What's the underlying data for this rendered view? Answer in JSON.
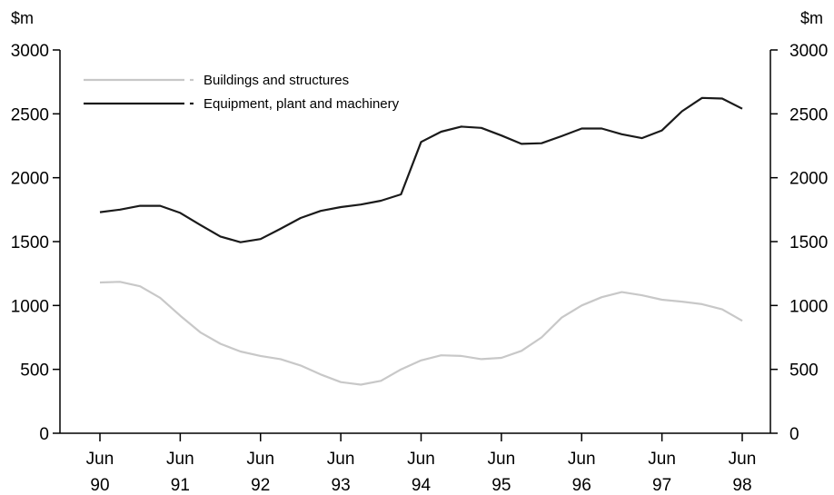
{
  "chart_data": {
    "type": "line",
    "left_unit": "$m",
    "right_unit": "$m",
    "ylim": [
      0,
      3000
    ],
    "yticks": [
      "0",
      "500",
      "1000",
      "1500",
      "2000",
      "2500",
      "3000"
    ],
    "x_tick_labels": [
      {
        "month": "Jun",
        "year": "90"
      },
      {
        "month": "Jun",
        "year": "91"
      },
      {
        "month": "Jun",
        "year": "92"
      },
      {
        "month": "Jun",
        "year": "93"
      },
      {
        "month": "Jun",
        "year": "94"
      },
      {
        "month": "Jun",
        "year": "95"
      },
      {
        "month": "Jun",
        "year": "96"
      },
      {
        "month": "Jun",
        "year": "97"
      },
      {
        "month": "Jun",
        "year": "98"
      }
    ],
    "x": [
      "Jun 90",
      "Sep 90",
      "Dec 90",
      "Mar 91",
      "Jun 91",
      "Sep 91",
      "Dec 91",
      "Mar 92",
      "Jun 92",
      "Sep 92",
      "Dec 92",
      "Mar 93",
      "Jun 93",
      "Sep 93",
      "Dec 93",
      "Mar 94",
      "Jun 94",
      "Sep 94",
      "Dec 94",
      "Mar 95",
      "Jun 95",
      "Sep 95",
      "Dec 95",
      "Mar 96",
      "Jun 96",
      "Sep 96",
      "Dec 96",
      "Mar 97",
      "Jun 97",
      "Sep 97",
      "Dec 97",
      "Mar 98",
      "Jun 98"
    ],
    "legend_position": "top-left",
    "grid": false,
    "series": [
      {
        "name": "Buildings and structures",
        "color": "#c8c8c8",
        "values": [
          1180,
          1185,
          1150,
          1060,
          920,
          790,
          700,
          640,
          605,
          580,
          530,
          460,
          400,
          380,
          410,
          500,
          570,
          610,
          605,
          580,
          590,
          645,
          750,
          905,
          1000,
          1065,
          1105,
          1080,
          1045,
          1030,
          1010,
          970,
          880
        ]
      },
      {
        "name": "Equipment, plant and machinery",
        "color": "#1a1a1a",
        "values": [
          1730,
          1750,
          1780,
          1780,
          1725,
          1630,
          1540,
          1495,
          1520,
          1600,
          1685,
          1740,
          1770,
          1790,
          1820,
          1870,
          2280,
          2360,
          2400,
          2390,
          2330,
          2265,
          2270,
          2325,
          2385,
          2385,
          2340,
          2310,
          2370,
          2520,
          2625,
          2620,
          2540
        ]
      }
    ]
  }
}
